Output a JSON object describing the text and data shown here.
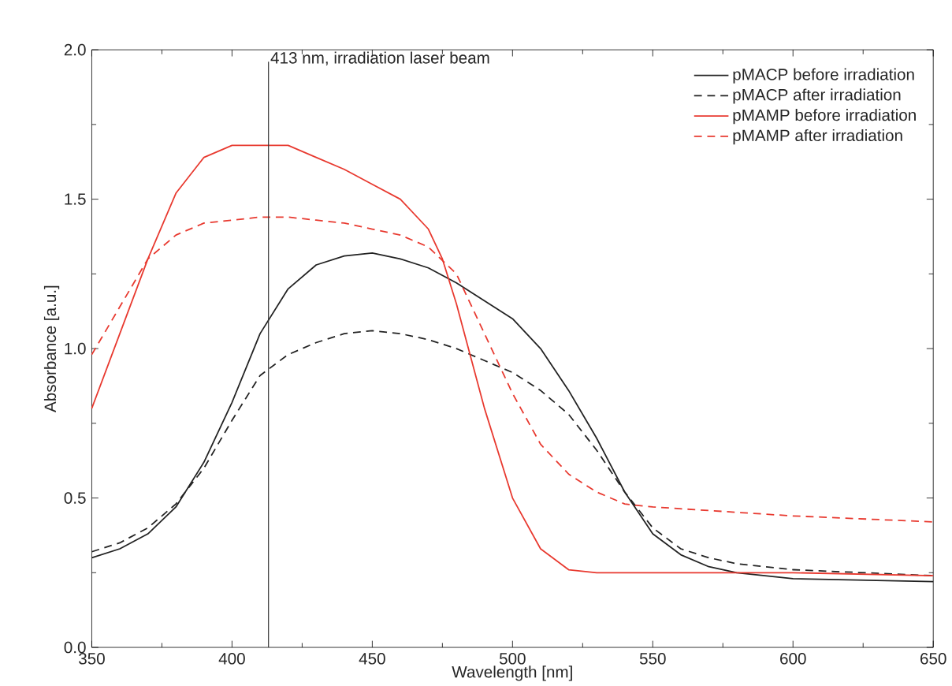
{
  "chart_data": {
    "type": "line",
    "xlabel": "Wavelength [nm]",
    "ylabel": "Absorbance [a.u.]",
    "xlim": [
      350,
      650
    ],
    "xticks": [
      350,
      400,
      450,
      500,
      550,
      600,
      650
    ],
    "ylim": [
      0,
      2
    ],
    "yticks": [
      {
        "value": 0,
        "label": "0.0"
      },
      {
        "value": 0.5,
        "label": "0.5"
      },
      {
        "value": 1,
        "label": "1.0"
      },
      {
        "value": 1.5,
        "label": "1.5"
      },
      {
        "value": 2,
        "label": "2.0"
      }
    ],
    "grid": false,
    "legend": "top right",
    "marker": "none",
    "ref_lines": [
      {
        "axis": "x",
        "value": 413,
        "label": "413 nm, irradiation laser beam",
        "color": "#333333"
      }
    ],
    "series": [
      {
        "name": "pMACP before irradiation",
        "color": "#222222",
        "line_style": "solid",
        "x": [
          350,
          360,
          370,
          380,
          390,
          400,
          410,
          420,
          430,
          440,
          450,
          460,
          470,
          480,
          490,
          500,
          510,
          520,
          530,
          540,
          550,
          560,
          570,
          580,
          600,
          650
        ],
        "values": [
          0.3,
          0.33,
          0.38,
          0.47,
          0.62,
          0.82,
          1.05,
          1.2,
          1.28,
          1.31,
          1.32,
          1.3,
          1.27,
          1.22,
          1.16,
          1.1,
          1.0,
          0.86,
          0.7,
          0.52,
          0.38,
          0.31,
          0.27,
          0.25,
          0.23,
          0.22
        ]
      },
      {
        "name": "pMACP after irradiation",
        "color": "#222222",
        "line_style": "dashed",
        "x": [
          350,
          360,
          370,
          380,
          390,
          400,
          410,
          420,
          430,
          440,
          450,
          460,
          470,
          480,
          490,
          500,
          510,
          520,
          530,
          540,
          550,
          560,
          570,
          580,
          600,
          650
        ],
        "values": [
          0.32,
          0.35,
          0.4,
          0.48,
          0.6,
          0.76,
          0.91,
          0.98,
          1.02,
          1.05,
          1.06,
          1.05,
          1.03,
          1.0,
          0.96,
          0.92,
          0.86,
          0.78,
          0.66,
          0.52,
          0.4,
          0.33,
          0.3,
          0.28,
          0.26,
          0.24
        ]
      },
      {
        "name": "pMAMP before irradiation",
        "color": "#e8392f",
        "line_style": "solid",
        "x": [
          350,
          360,
          370,
          380,
          390,
          400,
          410,
          420,
          430,
          440,
          450,
          460,
          470,
          475,
          480,
          490,
          500,
          510,
          520,
          530,
          550,
          600,
          650
        ],
        "values": [
          0.8,
          1.05,
          1.3,
          1.52,
          1.64,
          1.68,
          1.68,
          1.68,
          1.64,
          1.6,
          1.55,
          1.5,
          1.4,
          1.3,
          1.15,
          0.8,
          0.5,
          0.33,
          0.26,
          0.25,
          0.25,
          0.25,
          0.24
        ]
      },
      {
        "name": "pMAMP after irradiation",
        "color": "#e8392f",
        "line_style": "dashed",
        "x": [
          350,
          360,
          370,
          380,
          390,
          400,
          410,
          420,
          430,
          440,
          450,
          460,
          470,
          480,
          490,
          500,
          510,
          520,
          530,
          540,
          550,
          600,
          650
        ],
        "values": [
          0.98,
          1.14,
          1.3,
          1.38,
          1.42,
          1.43,
          1.44,
          1.44,
          1.43,
          1.42,
          1.4,
          1.38,
          1.34,
          1.25,
          1.05,
          0.85,
          0.68,
          0.58,
          0.52,
          0.48,
          0.47,
          0.44,
          0.42
        ]
      }
    ]
  }
}
